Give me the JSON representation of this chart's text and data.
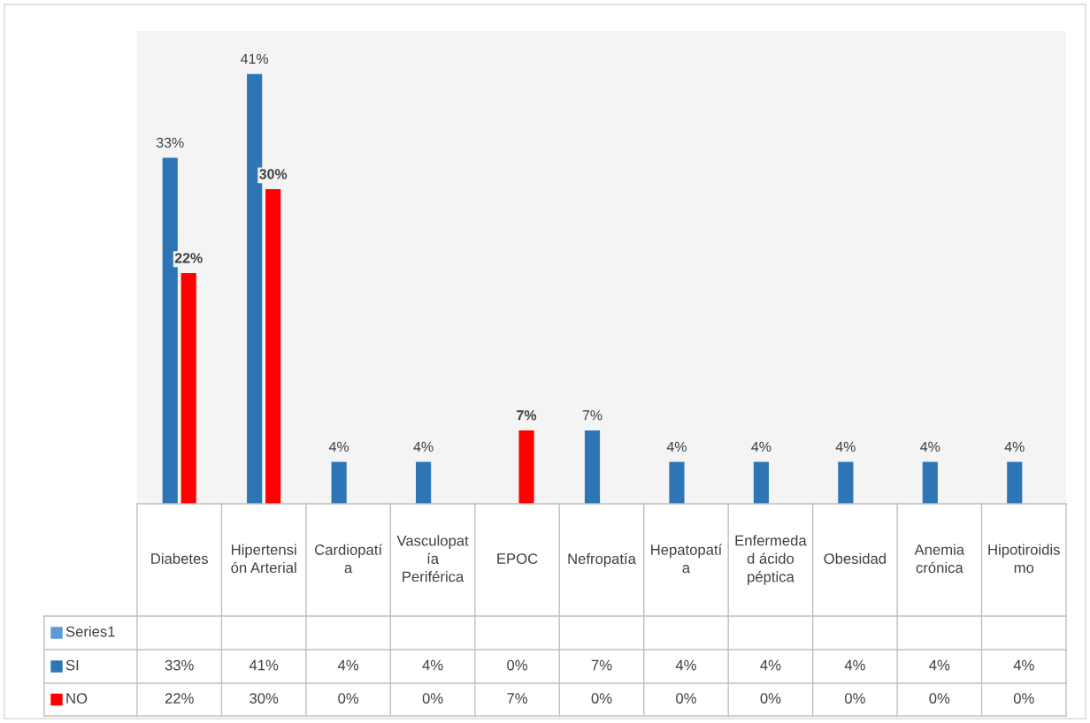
{
  "chart_data": {
    "type": "bar",
    "categories": [
      "Diabetes",
      "Hipertensión Arterial",
      "Cardiopatía",
      "Vasculopatía Periférica",
      "EPOC",
      "Nefropatía",
      "Hepatopatía",
      "Enfermedad ácido péptica",
      "Obesidad",
      "Anemia crónica",
      "Hipotiroidismo"
    ],
    "series": [
      {
        "name": "Series1",
        "color": "#5b9bd5",
        "values": [
          null,
          null,
          null,
          null,
          null,
          null,
          null,
          null,
          null,
          null,
          null
        ],
        "value_labels": [
          null,
          null,
          null,
          null,
          null,
          null,
          null,
          null,
          null,
          null,
          null
        ]
      },
      {
        "name": "SI",
        "color": "#2e75b6",
        "values": [
          33,
          41,
          4,
          4,
          0,
          7,
          4,
          4,
          4,
          4,
          4
        ],
        "value_labels": [
          "33%",
          "41%",
          "4%",
          "4%",
          "0%",
          "7%",
          "4%",
          "4%",
          "4%",
          "4%",
          "4%"
        ]
      },
      {
        "name": "NO",
        "color": "#ff0000",
        "values": [
          22,
          30,
          0,
          0,
          7,
          0,
          0,
          0,
          0,
          0,
          0
        ],
        "value_labels": [
          "22%",
          "30%",
          "0%",
          "0%",
          "7%",
          "0%",
          "0%",
          "0%",
          "0%",
          "0%",
          "0%"
        ]
      }
    ],
    "legend": "bottom left"
  }
}
